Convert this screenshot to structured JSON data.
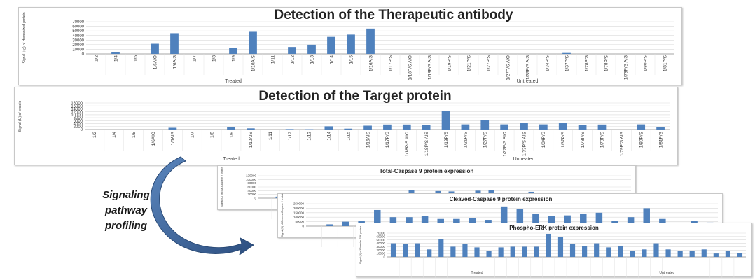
{
  "caption": [
    "Signaling",
    "pathway",
    "profiling"
  ],
  "colors": {
    "bar": "#4f81bd",
    "grid": "#d9d9d9",
    "axis": "#8c8c8c",
    "arrow": "#3f6596"
  },
  "arrow_icon": "curved-arrow-icon",
  "chart_data": [
    {
      "id": "therapeutic",
      "type": "bar",
      "title": "Detection of the Therapeutic antibody",
      "ylabel": "Signal (ug) of Humanized protein",
      "yticks": [
        "70000",
        "60000",
        "50000",
        "40000",
        "30000",
        "20000",
        "10000",
        "0"
      ],
      "ylim": [
        0,
        70000
      ],
      "categories": [
        "1/2",
        "1/4",
        "1/5",
        "1/6AIO",
        "1/6AIS",
        "1/7",
        "1/8",
        "1/9",
        "1/10AIS",
        "1/11",
        "1/12",
        "1/13",
        "1/14",
        "1/15",
        "1/16AIS",
        "1/17P/S",
        "1/18P/S AIO",
        "1/18P/S AIS",
        "1/19P/S",
        "1/21P/S",
        "1/27P/S",
        "1/27P/S AIO",
        "1/33P/S AIS",
        "1/34P/S",
        "1/37P/S",
        "1/78P/S",
        "1/78P/S",
        "1/79P/S AIS",
        "1/80P/S",
        "1/81P/S"
      ],
      "values": [
        0,
        3000,
        0,
        22000,
        45000,
        0,
        0,
        13000,
        48000,
        0,
        15000,
        20000,
        37000,
        42000,
        55000,
        0,
        0,
        0,
        0,
        0,
        0,
        0,
        0,
        0,
        2000,
        0,
        0,
        0,
        0,
        0
      ],
      "groups": [
        {
          "label": "Treated",
          "from": 0,
          "to": 14
        },
        {
          "label": "Untreated",
          "from": 15,
          "to": 29
        }
      ],
      "grid": true
    },
    {
      "id": "target",
      "type": "bar",
      "title": "Detection of the Target protein",
      "ylabel": "Signal (U) of protein",
      "yticks": [
        "18000",
        "16000",
        "14000",
        "12000",
        "10000",
        "8000",
        "6000",
        "4000",
        "2000",
        "0"
      ],
      "ylim": [
        0,
        18000
      ],
      "categories": [
        "1/2",
        "1/4",
        "1/5",
        "1/6AIO",
        "1/6AIS",
        "1/7",
        "1/8",
        "1/9",
        "1/10AIS",
        "1/11",
        "1/12",
        "1/13",
        "1/14",
        "1/15",
        "1/16AIS",
        "1/17P/S",
        "1/18P/S AIO",
        "1/18P/S AIS",
        "1/19P/S",
        "1/21P/S",
        "1/27P/S",
        "1/27P/S AIO",
        "1/33P/S AIS",
        "1/34P/S",
        "1/37P/S",
        "1/78P/S",
        "1/78P/S",
        "1/79P/S AIS",
        "1/80P/S",
        "1/81P/S"
      ],
      "values": [
        0,
        0,
        0,
        0,
        1200,
        0,
        0,
        1700,
        800,
        0,
        300,
        200,
        2200,
        600,
        2600,
        3400,
        3400,
        3200,
        12500,
        3500,
        6500,
        3500,
        4300,
        3500,
        4300,
        3100,
        3400,
        0,
        3500,
        1800
      ],
      "groups": [
        {
          "label": "Treated",
          "from": 0,
          "to": 14
        },
        {
          "label": "Untreated",
          "from": 15,
          "to": 29
        }
      ],
      "grid": true
    },
    {
      "id": "total-caspase",
      "type": "bar",
      "title": "Total-Caspase 9 protein expression",
      "ylabel": "Signal (U) of Total-Caspase 9 protein",
      "yticks": [
        "120000",
        "100000",
        "80000",
        "60000",
        "40000",
        "20000",
        "0"
      ],
      "ylim": [
        0,
        120000
      ],
      "values": [
        0,
        8000,
        10000,
        14000,
        16000,
        18000,
        22000,
        0,
        16000,
        0,
        21000,
        42000,
        26000,
        38000,
        36000,
        28000,
        40000,
        42000,
        28000,
        30000,
        34000,
        22000,
        8000,
        6000,
        4000,
        22000,
        4000,
        0
      ],
      "grid": true
    },
    {
      "id": "cleaved-caspase",
      "type": "bar",
      "title": "Cleaved-Caspase 9 protein expression",
      "ylabel": "Signal (U) of Cleaved-Caspase 9 protein",
      "yticks": [
        "250000",
        "200000",
        "150000",
        "100000",
        "50000",
        "0"
      ],
      "ylim": [
        0,
        250000
      ],
      "values": [
        0,
        20000,
        50000,
        60000,
        180000,
        100000,
        100000,
        110000,
        80000,
        80000,
        90000,
        70000,
        220000,
        190000,
        140000,
        110000,
        120000,
        140000,
        150000,
        60000,
        100000,
        200000,
        80000,
        30000,
        60000,
        40000
      ],
      "grid": true
    },
    {
      "id": "phospho-erk",
      "type": "bar",
      "title": "Phospho-ERK protein expression",
      "ylabel": "Signal (U) of Phospho-ERK protein",
      "yticks": [
        "70000",
        "60000",
        "50000",
        "40000",
        "30000",
        "20000",
        "10000",
        "0"
      ],
      "ylim": [
        0,
        70000
      ],
      "values": [
        40000,
        38000,
        40000,
        22000,
        52000,
        30000,
        38000,
        28000,
        18000,
        28000,
        30000,
        30000,
        30000,
        68000,
        58000,
        38000,
        32000,
        40000,
        28000,
        33000,
        18000,
        22000,
        40000,
        22000,
        18000,
        18000,
        22000,
        10000,
        18000,
        12000
      ],
      "groups": [
        {
          "label": "Treated"
        },
        {
          "label": "Untreated"
        }
      ],
      "grid": true
    }
  ]
}
